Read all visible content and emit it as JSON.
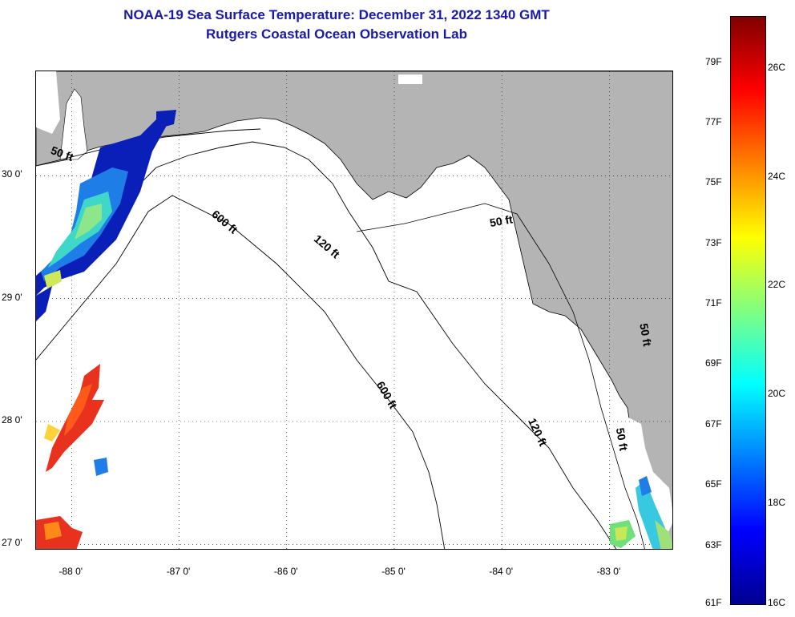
{
  "header": {
    "title": "NOAA-19 Sea Surface Temperature:  December 31, 2022 1340 GMT",
    "subtitle": "Rutgers Coastal Ocean Observation Lab"
  },
  "map": {
    "lat_range": [
      26.95,
      30.85
    ],
    "lon_range": [
      -88.33,
      -82.4
    ],
    "lat_ticks": [
      {
        "value": 30,
        "label": "30 0'"
      },
      {
        "value": 29,
        "label": "29 0'"
      },
      {
        "value": 28,
        "label": "28 0'"
      },
      {
        "value": 27,
        "label": "27 0'"
      }
    ],
    "lon_ticks": [
      {
        "value": -88,
        "label": "-88 0'"
      },
      {
        "value": -87,
        "label": "-87 0'"
      },
      {
        "value": -86,
        "label": "-86 0'"
      },
      {
        "value": -85,
        "label": "-85 0'"
      },
      {
        "value": -84,
        "label": "-84 0'"
      },
      {
        "value": -83,
        "label": "-83 0'"
      }
    ],
    "contour_labels": [
      {
        "text": "50 ft",
        "lon": -88.1,
        "lat": 30.15,
        "rotate": 20
      },
      {
        "text": "600 ft",
        "lon": -86.6,
        "lat": 29.6,
        "rotate": 40
      },
      {
        "text": "120 ft",
        "lon": -85.65,
        "lat": 29.4,
        "rotate": 40
      },
      {
        "text": "50 ft",
        "lon": -84.0,
        "lat": 29.6,
        "rotate": -10
      },
      {
        "text": "600 ft",
        "lon": -85.1,
        "lat": 28.2,
        "rotate": 60
      },
      {
        "text": "120 ft",
        "lon": -83.7,
        "lat": 27.9,
        "rotate": 65
      },
      {
        "text": "50 ft",
        "lon": -82.92,
        "lat": 27.85,
        "rotate": 80
      },
      {
        "text": "50 ft",
        "lon": -82.7,
        "lat": 28.7,
        "rotate": 80
      }
    ],
    "colors": {
      "land": "#b4b4b4",
      "ocean": "#ffffff",
      "grid": "#000000"
    }
  },
  "colorbar": {
    "f_labels": [
      "79F",
      "77F",
      "75F",
      "73F",
      "71F",
      "69F",
      "67F",
      "65F",
      "63F",
      "61F"
    ],
    "c_labels": [
      "26C",
      "24C",
      "22C",
      "20C",
      "18C",
      "16C"
    ],
    "f_min": 61,
    "f_max": 80.5
  }
}
